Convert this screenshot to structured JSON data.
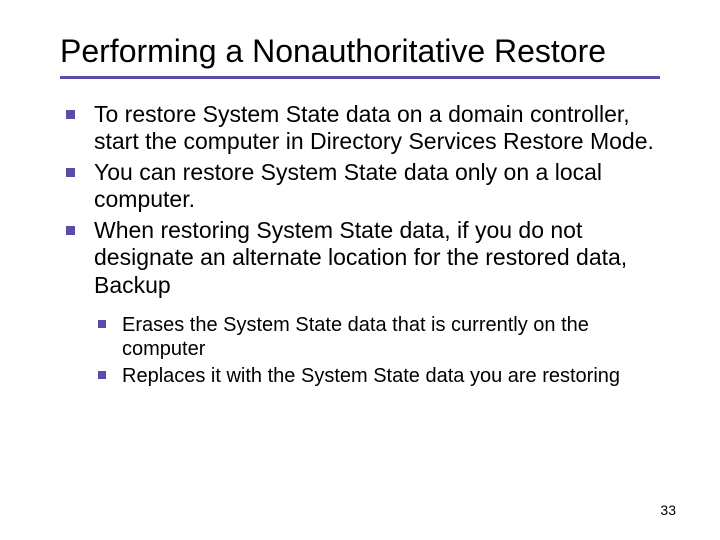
{
  "title": "Performing a Nonauthoritative Restore",
  "underline_color": "#5a4da8",
  "bullet_color": "#5a4da8",
  "title_fontsize": 32,
  "body_fontsize": 23,
  "sub_fontsize": 20,
  "background_color": "#ffffff",
  "text_color": "#000000",
  "bullets": [
    "To restore System State data on a domain controller, start the computer in Directory Services Restore Mode.",
    "You can restore System State data only on a local computer.",
    "When restoring System State data, if you do not designate an alternate location for the restored data, Backup"
  ],
  "sub_bullets": [
    "Erases the System State data that is currently on the computer",
    "Replaces it with the System State data you are restoring"
  ],
  "page_number": "33"
}
